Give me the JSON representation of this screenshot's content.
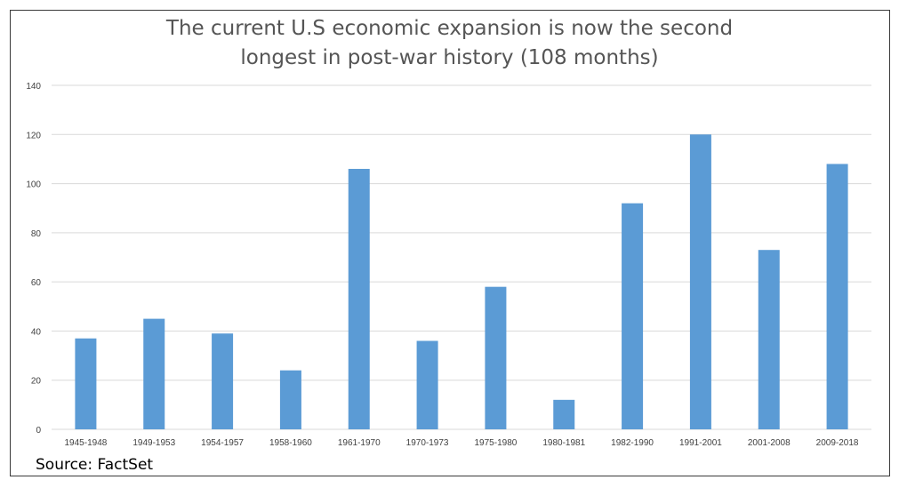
{
  "chart_data": {
    "type": "bar",
    "title_lines": [
      "The current U.S economic expansion is now the second",
      "longest in post-war history (108 months)"
    ],
    "categories": [
      "1945-1948",
      "1949-1953",
      "1954-1957",
      "1958-1960",
      "1961-1970",
      "1970-1973",
      "1975-1980",
      "1980-1981",
      "1982-1990",
      "1991-2001",
      "2001-2008",
      "2009-2018"
    ],
    "values": [
      37,
      45,
      39,
      24,
      106,
      36,
      58,
      12,
      92,
      120,
      73,
      108
    ],
    "xlabel": "",
    "ylabel": "",
    "ylim": [
      0,
      140
    ],
    "yticks": [
      0,
      20,
      40,
      60,
      80,
      100,
      120,
      140
    ],
    "grid": true,
    "legend": "none",
    "bar_color": "#5b9bd5",
    "grid_color": "#d9d9d9",
    "source": "Source: FactSet"
  }
}
